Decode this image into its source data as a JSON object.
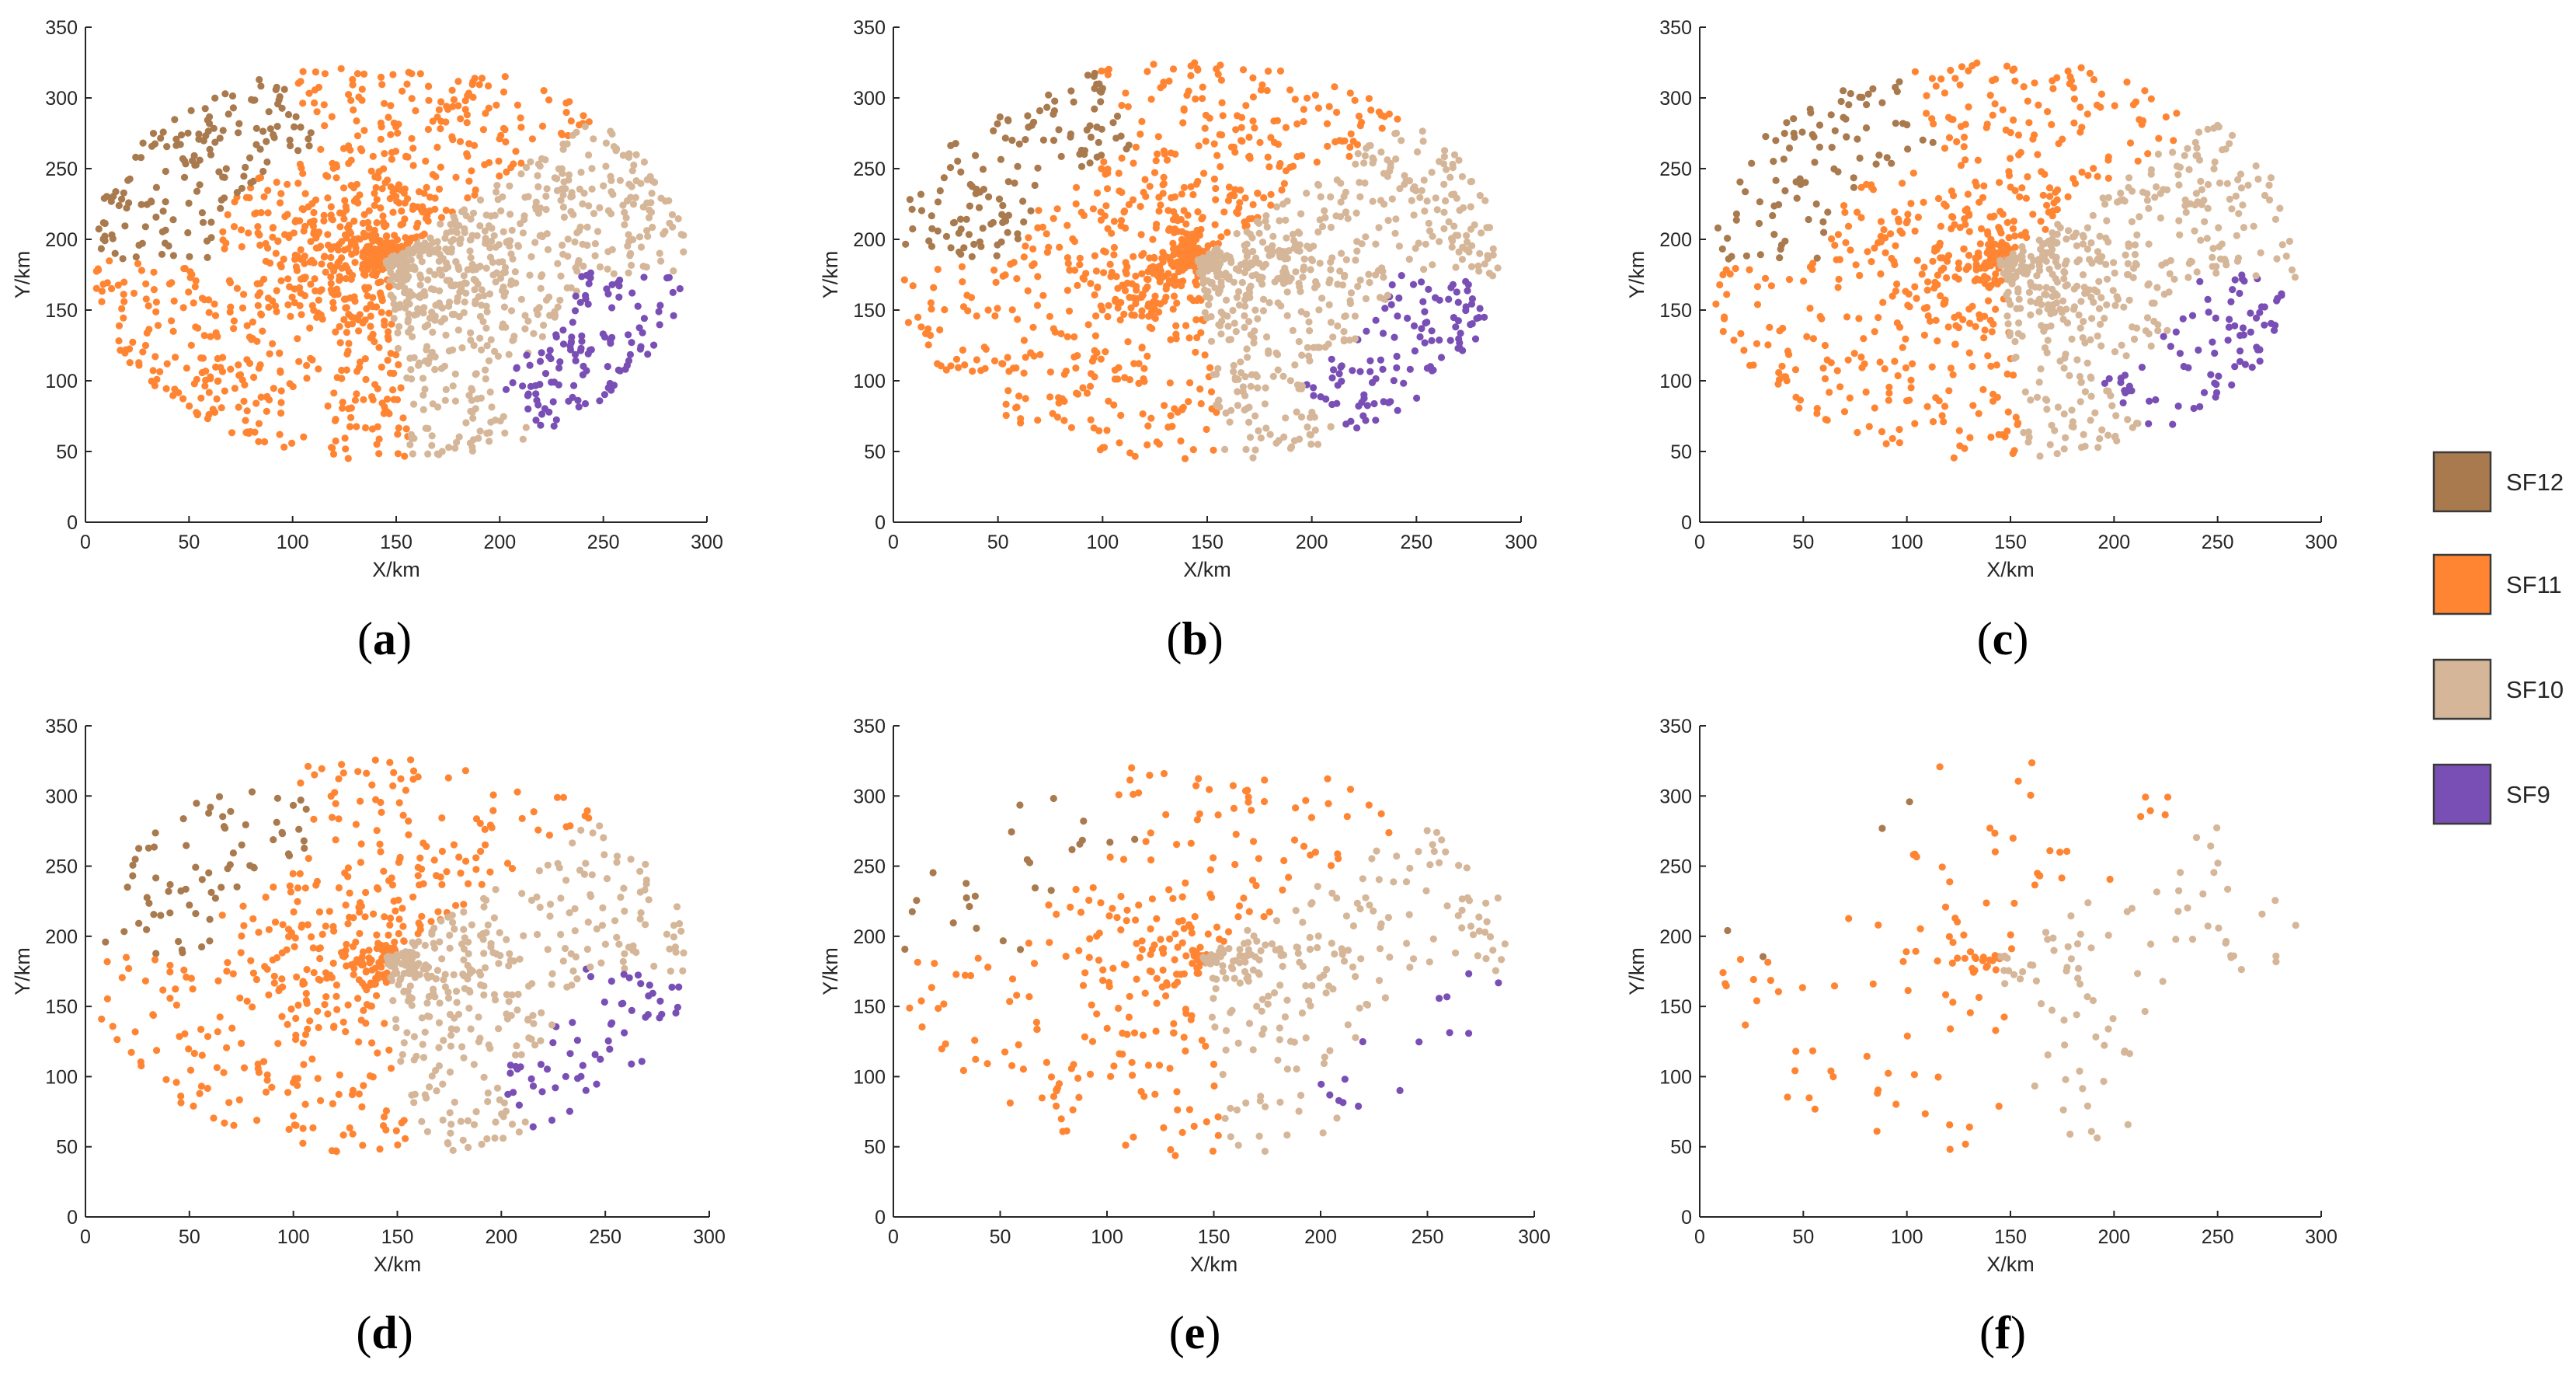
{
  "figure": {
    "panel_captions": [
      {
        "open": "(",
        "letter": "a",
        "close": ")"
      },
      {
        "open": "(",
        "letter": "b",
        "close": ")"
      },
      {
        "open": "(",
        "letter": "c",
        "close": ")"
      },
      {
        "open": "(",
        "letter": "d",
        "close": ")"
      },
      {
        "open": "(",
        "letter": "e",
        "close": ")"
      },
      {
        "open": "(",
        "letter": "f",
        "close": ")"
      }
    ],
    "legend": [
      {
        "label": "SF12",
        "color": "#a97a4e"
      },
      {
        "label": "SF11",
        "color": "#ff8533"
      },
      {
        "label": "SF10",
        "color": "#d5b698"
      },
      {
        "label": "SF9",
        "color": "#7a4fb5"
      }
    ]
  },
  "chart_data": {
    "type": "scatter",
    "panel_count": 6,
    "xlabel": "X/km",
    "ylabel": "Y/km",
    "xlim": [
      0,
      300
    ],
    "ylim": [
      0,
      350
    ],
    "xticks": [
      0,
      50,
      100,
      150,
      200,
      250,
      300
    ],
    "yticks": [
      0,
      50,
      100,
      150,
      200,
      250,
      300,
      350
    ],
    "network_center": [
      145,
      185
    ],
    "series_names": [
      "SF12",
      "SF11",
      "SF10",
      "SF9"
    ],
    "panels": [
      {
        "label": "a",
        "approx_point_counts": {
          "SF12": 150,
          "SF11": 900,
          "SF10": 650,
          "SF9": 120
        }
      },
      {
        "label": "b",
        "approx_point_counts": {
          "SF12": 130,
          "SF11": 700,
          "SF10": 550,
          "SF9": 110
        }
      },
      {
        "label": "c",
        "approx_point_counts": {
          "SF12": 90,
          "SF11": 550,
          "SF10": 450,
          "SF9": 80
        }
      },
      {
        "label": "d",
        "approx_point_counts": {
          "SF12": 70,
          "SF11": 450,
          "SF10": 380,
          "SF9": 60
        }
      },
      {
        "label": "e",
        "approx_point_counts": {
          "SF12": 25,
          "SF11": 280,
          "SF10": 230,
          "SF9": 15
        }
      },
      {
        "label": "f",
        "approx_point_counts": {
          "SF12": 4,
          "SF11": 110,
          "SF10": 90,
          "SF9": 0
        }
      }
    ]
  }
}
